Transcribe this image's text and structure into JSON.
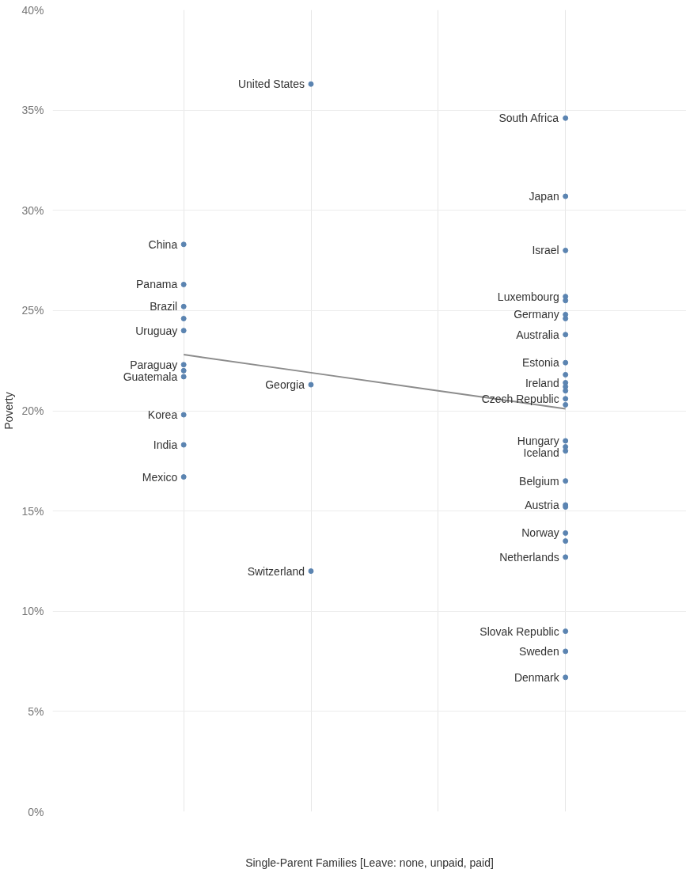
{
  "chart_data": {
    "type": "scatter",
    "xlabel": "Single-Parent Families [Leave: none, unpaid, paid]",
    "ylabel": "Poverty",
    "categories": [
      null,
      null,
      null,
      null
    ],
    "ylim": [
      0,
      40
    ],
    "yticks": [
      {
        "value": 0,
        "label": "0%"
      },
      {
        "value": 5,
        "label": "5%"
      },
      {
        "value": 10,
        "label": "10%"
      },
      {
        "value": 15,
        "label": "15%"
      },
      {
        "value": 20,
        "label": "20%"
      },
      {
        "value": 25,
        "label": "25%"
      },
      {
        "value": 30,
        "label": "30%"
      },
      {
        "value": 35,
        "label": "35%"
      },
      {
        "value": 40,
        "label": "40%"
      }
    ],
    "tick_labels": "y",
    "grid": true,
    "marker": "circle",
    "series": [
      {
        "color": "#5b84b1",
        "values": [
          28.3,
          36.3,
          null,
          34.6
        ],
        "value_labels": [
          "China",
          "United States",
          null,
          "South Africa"
        ]
      },
      {
        "color": "#5b84b1",
        "values": [
          26.3,
          21.3,
          null,
          30.7
        ],
        "value_labels": [
          "Panama",
          "Georgia",
          null,
          "Japan"
        ]
      },
      {
        "color": "#5b84b1",
        "values": [
          25.2,
          12.0,
          null,
          28.0
        ],
        "value_labels": [
          "Brazil",
          "Switzerland",
          null,
          "Israel"
        ]
      },
      {
        "color": "#5b84b1",
        "values": [
          24.6,
          null,
          null,
          25.7
        ],
        "value_labels": [
          null,
          null,
          null,
          "Luxembourg"
        ]
      },
      {
        "color": "#5b84b1",
        "values": [
          24.0,
          null,
          null,
          25.5
        ],
        "value_labels": [
          "Uruguay",
          null,
          null,
          null
        ]
      },
      {
        "color": "#5b84b1",
        "values": [
          22.3,
          null,
          null,
          24.8
        ],
        "value_labels": [
          "Paraguay",
          null,
          null,
          "Germany"
        ]
      },
      {
        "color": "#5b84b1",
        "values": [
          22.0,
          null,
          null,
          24.6
        ]
      },
      {
        "color": "#5b84b1",
        "values": [
          21.7,
          null,
          null,
          23.8
        ],
        "value_labels": [
          "Guatemala",
          null,
          null,
          "Australia"
        ]
      },
      {
        "color": "#5b84b1",
        "values": [
          19.8,
          null,
          null,
          22.4
        ],
        "value_labels": [
          "Korea",
          null,
          null,
          "Estonia"
        ]
      },
      {
        "color": "#5b84b1",
        "values": [
          18.3,
          null,
          null,
          21.8
        ],
        "value_labels": [
          "India",
          null,
          null,
          null
        ]
      },
      {
        "color": "#5b84b1",
        "values": [
          16.7,
          null,
          null,
          21.4
        ],
        "value_labels": [
          "Mexico",
          null,
          null,
          "Ireland"
        ]
      },
      {
        "color": "#5b84b1",
        "values": [
          null,
          null,
          null,
          21.2
        ]
      },
      {
        "color": "#5b84b1",
        "values": [
          null,
          null,
          null,
          21.0
        ]
      },
      {
        "color": "#5b84b1",
        "values": [
          null,
          null,
          null,
          20.6
        ],
        "value_labels": [
          null,
          null,
          null,
          "Czech Republic"
        ]
      },
      {
        "color": "#5b84b1",
        "values": [
          null,
          null,
          null,
          20.3
        ]
      },
      {
        "color": "#5b84b1",
        "values": [
          null,
          null,
          null,
          18.5
        ],
        "value_labels": [
          null,
          null,
          null,
          "Hungary"
        ]
      },
      {
        "color": "#5b84b1",
        "values": [
          null,
          null,
          null,
          18.2
        ],
        "value_labels": [
          null,
          null,
          null,
          "Iceland"
        ]
      },
      {
        "color": "#5b84b1",
        "values": [
          null,
          null,
          null,
          18.0
        ]
      },
      {
        "color": "#5b84b1",
        "values": [
          null,
          null,
          null,
          16.5
        ],
        "value_labels": [
          null,
          null,
          null,
          "Belgium"
        ]
      },
      {
        "color": "#5b84b1",
        "values": [
          null,
          null,
          null,
          15.3
        ],
        "value_labels": [
          null,
          null,
          null,
          "Austria"
        ]
      },
      {
        "color": "#5b84b1",
        "values": [
          null,
          null,
          null,
          15.2
        ]
      },
      {
        "color": "#5b84b1",
        "values": [
          null,
          null,
          null,
          13.9
        ],
        "value_labels": [
          null,
          null,
          null,
          "Norway"
        ]
      },
      {
        "color": "#5b84b1",
        "values": [
          null,
          null,
          null,
          13.5
        ]
      },
      {
        "color": "#5b84b1",
        "values": [
          null,
          null,
          null,
          12.7
        ],
        "value_labels": [
          null,
          null,
          null,
          "Netherlands"
        ]
      },
      {
        "color": "#5b84b1",
        "values": [
          null,
          null,
          null,
          9.0
        ],
        "value_labels": [
          null,
          null,
          null,
          "Slovak Republic"
        ]
      },
      {
        "color": "#5b84b1",
        "values": [
          null,
          null,
          null,
          8.0
        ],
        "value_labels": [
          null,
          null,
          null,
          "Sweden"
        ]
      },
      {
        "color": "#5b84b1",
        "values": [
          null,
          null,
          null,
          6.7
        ],
        "value_labels": [
          null,
          null,
          null,
          "Denmark"
        ]
      },
      {
        "type": "line",
        "marker": "none",
        "color": "#8c8c8c",
        "values": [
          22.8,
          21.9,
          21.0,
          20.1
        ]
      }
    ]
  }
}
